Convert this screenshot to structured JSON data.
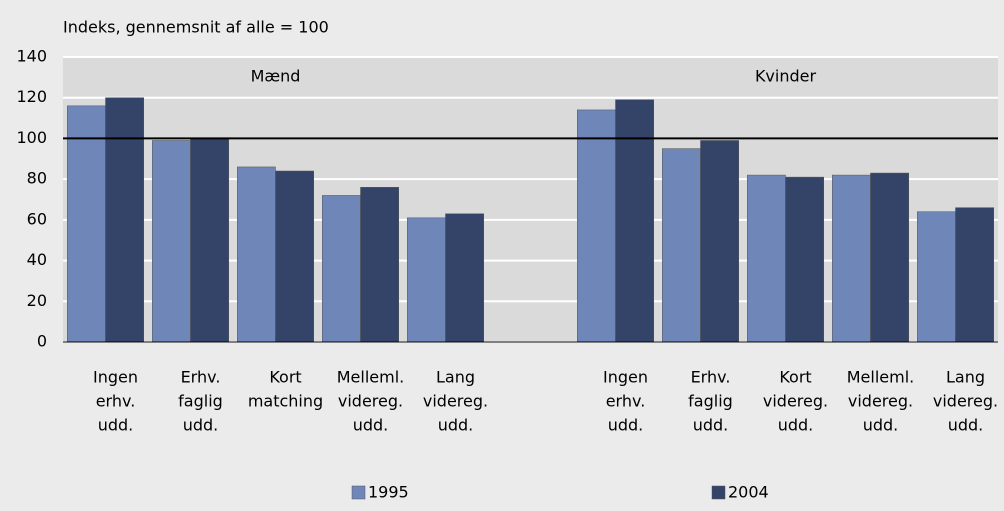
{
  "chart_data": {
    "type": "bar",
    "title": "Indeks, gennemsnit af alle = 100",
    "groups": [
      "Mænd",
      "Kvinder"
    ],
    "categories": [
      [
        "Ingen",
        "erhv.",
        "udd."
      ],
      [
        "Erhv.",
        "faglig",
        "udd."
      ],
      [
        "Kort",
        "matching"
      ],
      [
        "Melleml.",
        "videreg.",
        "udd."
      ],
      [
        "Lang",
        "videreg.",
        "udd."
      ],
      null,
      [
        "Ingen",
        "erhv.",
        "udd."
      ],
      [
        "Erhv.",
        "faglig",
        "udd."
      ],
      [
        "Kort",
        "videreg.",
        "udd."
      ],
      [
        "Melleml.",
        "videreg.",
        "udd."
      ],
      [
        "Lang",
        "videreg.",
        "udd."
      ]
    ],
    "series": [
      {
        "name": "1995",
        "color": "#6f86b8",
        "values": [
          116,
          99,
          86,
          72,
          61,
          null,
          114,
          95,
          82,
          82,
          64
        ]
      },
      {
        "name": "2004",
        "color": "#344468",
        "values": [
          120,
          100,
          84,
          76,
          63,
          null,
          119,
          99,
          81,
          83,
          66
        ]
      }
    ],
    "reference_line": 100,
    "ylim": [
      0,
      140
    ],
    "yticks": [
      0,
      20,
      40,
      60,
      80,
      100,
      120,
      140
    ],
    "grid": true
  }
}
